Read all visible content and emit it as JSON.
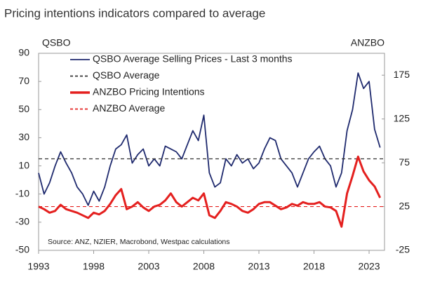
{
  "chart_data": {
    "type": "line",
    "title": "Pricing intentions indicators compared to average",
    "ylabel": "QSBO",
    "y2label": "ANZBO",
    "annotation": "Source: ANZ, NZIER, Macrobond, Westpac calculations",
    "x": [
      1993,
      1993.5,
      1994,
      1994.5,
      1995,
      1995.5,
      1996,
      1996.5,
      1997,
      1997.5,
      1998,
      1998.5,
      1999,
      1999.5,
      2000,
      2000.5,
      2001,
      2001.5,
      2002,
      2002.5,
      2003,
      2003.5,
      2004,
      2004.5,
      2005,
      2005.5,
      2006,
      2006.5,
      2007,
      2007.5,
      2008,
      2008.5,
      2009,
      2009.5,
      2010,
      2010.5,
      2011,
      2011.5,
      2012,
      2012.5,
      2013,
      2013.5,
      2014,
      2014.5,
      2015,
      2015.5,
      2016,
      2016.5,
      2017,
      2017.5,
      2018,
      2018.5,
      2019,
      2019.5,
      2020,
      2020.5,
      2021,
      2021.5,
      2022,
      2022.5,
      2023,
      2023.5,
      2024
    ],
    "series": [
      {
        "name": "QSBO Average Selling Prices - Last 3 months",
        "color": "#1f2a6e",
        "axis": "y",
        "values": [
          5,
          -10,
          -2,
          10,
          20,
          12,
          5,
          -5,
          -10,
          -18,
          -8,
          -15,
          -5,
          10,
          22,
          25,
          32,
          12,
          18,
          22,
          10,
          15,
          10,
          24,
          22,
          20,
          15,
          25,
          35,
          28,
          46,
          5,
          -5,
          -2,
          15,
          10,
          18,
          12,
          15,
          8,
          12,
          22,
          30,
          28,
          15,
          10,
          5,
          -5,
          5,
          15,
          20,
          24,
          15,
          10,
          -5,
          5,
          35,
          50,
          76,
          65,
          70,
          36,
          23
        ]
      },
      {
        "name": "QSBO Average",
        "color": "#333333",
        "axis": "y",
        "dashed": true,
        "value": 15
      },
      {
        "name": "ANZBO Pricing Intentions",
        "color": "#e4201f",
        "axis": "y2",
        "values": [
          25,
          22,
          18,
          20,
          27,
          22,
          20,
          18,
          15,
          12,
          18,
          16,
          20,
          28,
          38,
          45,
          22,
          25,
          30,
          24,
          20,
          25,
          27,
          32,
          40,
          30,
          25,
          30,
          35,
          32,
          40,
          15,
          12,
          20,
          30,
          28,
          25,
          20,
          18,
          22,
          28,
          30,
          30,
          26,
          22,
          24,
          28,
          26,
          30,
          28,
          28,
          30,
          25,
          24,
          20,
          2,
          40,
          60,
          82,
          65,
          55,
          48,
          35
        ]
      },
      {
        "name": "ANZBO Average",
        "color": "#e4201f",
        "axis": "y2",
        "dashed": true,
        "value": 25
      }
    ],
    "xlim": [
      1993,
      2024.4
    ],
    "xticks": [
      1993,
      1998,
      2003,
      2008,
      2013,
      2018,
      2023
    ],
    "ylim": [
      -50,
      90
    ],
    "yticks": [
      -50,
      -30,
      -10,
      10,
      30,
      50,
      70,
      90
    ],
    "y2lim": [
      -25,
      200
    ],
    "y2ticks": [
      -25,
      25,
      75,
      125,
      175
    ],
    "grid": false
  }
}
